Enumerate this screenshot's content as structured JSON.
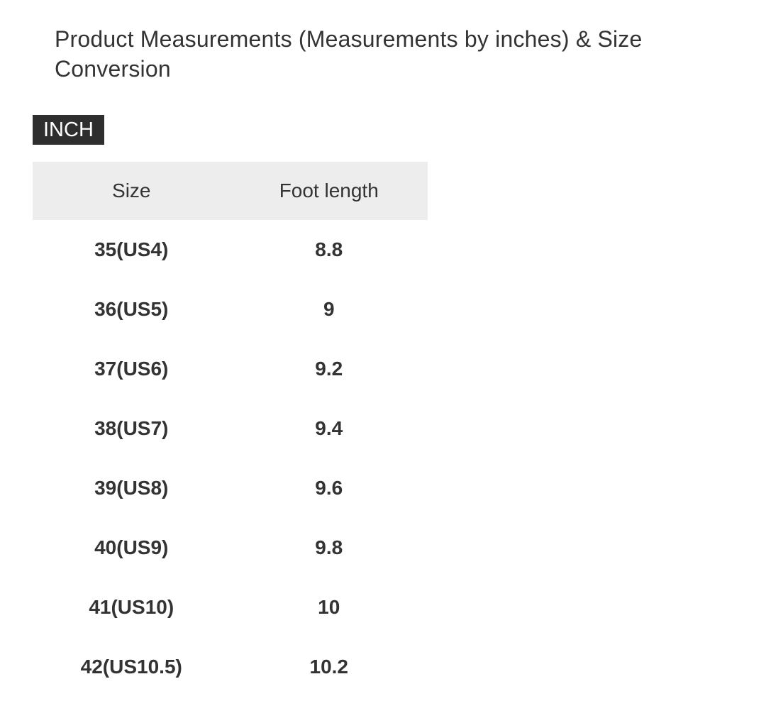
{
  "header": {
    "title": "Product Measurements (Measurements by inches) & Size Conversion",
    "unit_badge": "INCH"
  },
  "table": {
    "columns": [
      "Size",
      "Foot length"
    ],
    "rows": [
      {
        "size": "35(US4)",
        "foot_length": "8.8"
      },
      {
        "size": "36(US5)",
        "foot_length": "9"
      },
      {
        "size": "37(US6)",
        "foot_length": "9.2"
      },
      {
        "size": "38(US7)",
        "foot_length": "9.4"
      },
      {
        "size": "39(US8)",
        "foot_length": "9.6"
      },
      {
        "size": "40(US9)",
        "foot_length": "9.8"
      },
      {
        "size": "41(US10)",
        "foot_length": "10"
      },
      {
        "size": "42(US10.5)",
        "foot_length": "10.2"
      }
    ]
  },
  "colors": {
    "text": "#333333",
    "badge-bg": "#2e2e2e",
    "badge-text": "#ffffff",
    "header-bg": "#ededed",
    "page-bg": "#ffffff"
  }
}
